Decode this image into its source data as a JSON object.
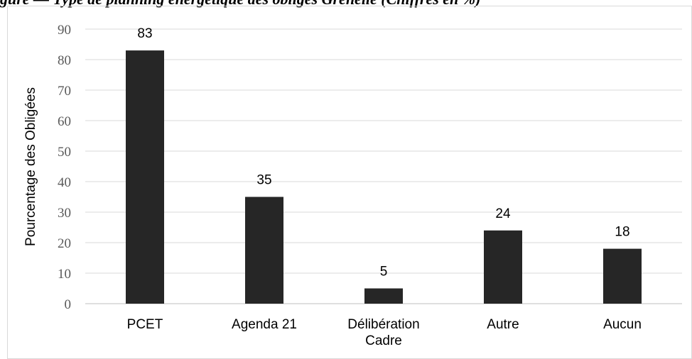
{
  "title": "gure — Type de planning énergétique des obligés Grenelle (Chiffres en %)",
  "chart_data": {
    "type": "bar",
    "categories": [
      [
        "PCET"
      ],
      [
        "Agenda 21"
      ],
      [
        "Délibération",
        "Cadre"
      ],
      [
        "Autre"
      ],
      [
        "Aucun"
      ]
    ],
    "values": [
      83,
      35,
      5,
      24,
      18
    ],
    "data_labels": [
      "83",
      "35",
      "5",
      "24",
      "18"
    ],
    "ylabel": "Pourcentage des Obligées",
    "xlabel": "",
    "ylim": [
      0,
      90
    ],
    "yticks": [
      0,
      10,
      20,
      30,
      40,
      50,
      60,
      70,
      80,
      90
    ],
    "grid": true,
    "bar_color": "#262626",
    "grid_color": "#d9d9d9"
  }
}
